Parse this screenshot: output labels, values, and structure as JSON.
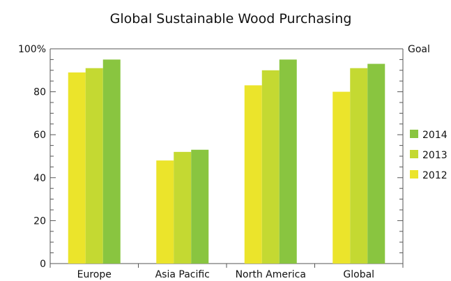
{
  "chart_data": {
    "type": "bar",
    "title": "Global Sustainable Wood Purchasing",
    "categories": [
      "Europe",
      "Asia Pacific",
      "North America",
      "Global"
    ],
    "series": [
      {
        "name": "2012",
        "color": "#ebe42b",
        "values": [
          89,
          48,
          83,
          80
        ]
      },
      {
        "name": "2013",
        "color": "#c4d932",
        "values": [
          91,
          52,
          90,
          91
        ]
      },
      {
        "name": "2014",
        "color": "#89c540",
        "values": [
          95,
          53,
          95,
          93
        ]
      }
    ],
    "ylim": [
      0,
      100
    ],
    "yticks": [
      "0",
      "20",
      "40",
      "60",
      "80",
      "100%"
    ],
    "ytick_values": [
      0,
      20,
      40,
      60,
      80,
      100
    ],
    "goal": {
      "label": "Goal",
      "value": 100
    },
    "legend_order": [
      "2014",
      "2013",
      "2012"
    ],
    "legend_position": "right",
    "grid": false,
    "axis_color": "#555555"
  }
}
